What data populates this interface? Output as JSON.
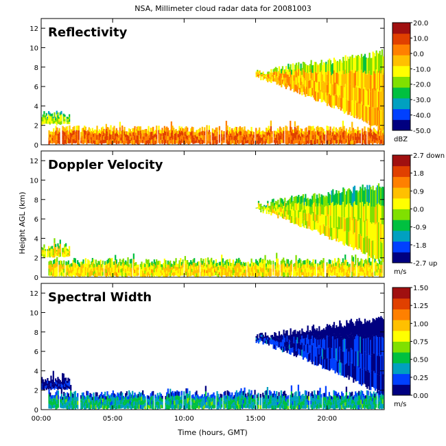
{
  "chart_data": {
    "type": "heatmap",
    "title": "NSA, Millimeter cloud radar data for 20081003",
    "xlabel": "Time (hours, GMT)",
    "ylabel": "Height AGL (km)",
    "xlim": [
      0,
      24
    ],
    "ylim": [
      0,
      13
    ],
    "x_ticks": [
      "00:00",
      "05:00",
      "10:00",
      "15:00",
      "20:00"
    ],
    "x_tick_values": [
      0,
      5,
      10,
      15,
      20
    ],
    "y_ticks": [
      "0",
      "2",
      "4",
      "6",
      "8",
      "10",
      "12"
    ],
    "y_tick_values": [
      0,
      2,
      4,
      6,
      8,
      10,
      12
    ],
    "panels": [
      {
        "title": "Reflectivity",
        "colorbar_ticks": [
          "20.0",
          "10.0",
          "0.0",
          "-10.0",
          "-20.0",
          "-30.0",
          "-40.0",
          "-50.0"
        ],
        "colorbar_range": [
          -50,
          20
        ],
        "colorbar_unit": "dBZ",
        "colormap": [
          "#000080",
          "#0040ff",
          "#00a0c0",
          "#00c040",
          "#80e000",
          "#ffff00",
          "#ffc000",
          "#ff8000",
          "#e04000",
          "#a01010"
        ],
        "features": [
          {
            "kind": "low_layer",
            "t_start": 0.0,
            "t_end": 2.0,
            "z_bottom": 2.0,
            "z_top": 3.5,
            "value": -15
          },
          {
            "kind": "low_layer",
            "t_start": 0.5,
            "t_end": 24.0,
            "z_bottom": 0.0,
            "z_top": 2.0,
            "value": 5
          },
          {
            "kind": "high_layer",
            "t_start": 15.0,
            "t_end": 24.0,
            "top_start": 7.5,
            "top_end": 9.5,
            "bottom_start": 7.0,
            "bottom_end": 1.5,
            "value": -5
          }
        ]
      },
      {
        "title": "Doppler Velocity",
        "colorbar_ticks": [
          "2.7 down",
          "1.8",
          "0.9",
          "0.0",
          "-0.9",
          "-1.8",
          "-2.7 up"
        ],
        "colorbar_range": [
          -2.7,
          2.7
        ],
        "colorbar_unit": "m/s",
        "colormap": [
          "#000080",
          "#0040ff",
          "#00a0c0",
          "#00c040",
          "#80e000",
          "#ffff00",
          "#ffc000",
          "#ff8000",
          "#e04000",
          "#a01010"
        ],
        "features": [
          {
            "kind": "low_layer",
            "t_start": 0.0,
            "t_end": 2.0,
            "z_bottom": 2.0,
            "z_top": 3.5,
            "value": 0.4
          },
          {
            "kind": "low_layer",
            "t_start": 0.5,
            "t_end": 24.0,
            "z_bottom": 0.0,
            "z_top": 2.0,
            "value": 0.5
          },
          {
            "kind": "high_layer",
            "t_start": 15.0,
            "t_end": 24.0,
            "top_start": 7.5,
            "top_end": 9.5,
            "bottom_start": 7.0,
            "bottom_end": 1.5,
            "value": 0.2
          }
        ]
      },
      {
        "title": "Spectral Width",
        "colorbar_ticks": [
          "1.50",
          "1.25",
          "1.00",
          "0.75",
          "0.50",
          "0.25",
          "0.00"
        ],
        "colorbar_range": [
          0,
          1.5
        ],
        "colorbar_unit": "m/s",
        "colormap": [
          "#000080",
          "#0040ff",
          "#00a0c0",
          "#00c040",
          "#80e000",
          "#ffff00",
          "#ffc000",
          "#ff8000",
          "#e04000",
          "#a01010"
        ],
        "features": [
          {
            "kind": "low_layer",
            "t_start": 0.0,
            "t_end": 2.0,
            "z_bottom": 2.0,
            "z_top": 3.5,
            "value": 0.1
          },
          {
            "kind": "low_layer",
            "t_start": 0.5,
            "t_end": 24.0,
            "z_bottom": 0.0,
            "z_top": 2.0,
            "value": 0.45
          },
          {
            "kind": "high_layer",
            "t_start": 15.0,
            "t_end": 24.0,
            "top_start": 7.5,
            "top_end": 9.5,
            "bottom_start": 7.0,
            "bottom_end": 1.5,
            "value": 0.15
          }
        ]
      }
    ]
  }
}
